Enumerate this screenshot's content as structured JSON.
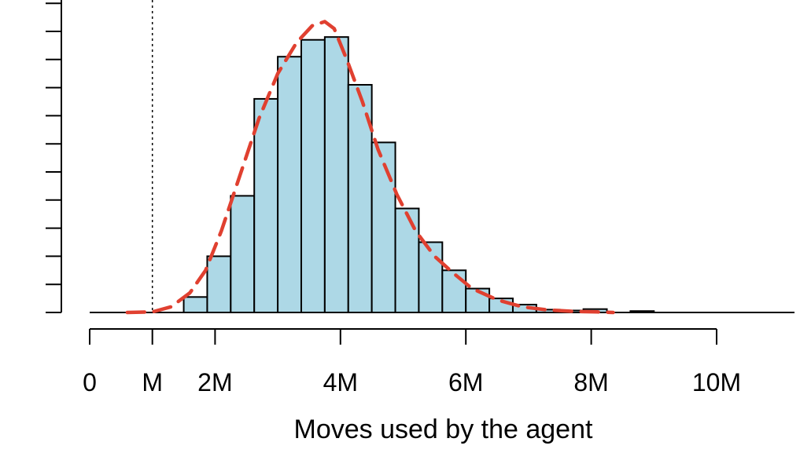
{
  "chart_data": {
    "type": "bar",
    "xlabel": "Moves used by the agent",
    "ylabel": "",
    "x_ticks": [
      {
        "value": 0,
        "label": "0"
      },
      {
        "value": 1,
        "label": "M"
      },
      {
        "value": 2,
        "label": "2M"
      },
      {
        "value": 4,
        "label": "4M"
      },
      {
        "value": 6,
        "label": "6M"
      },
      {
        "value": 8,
        "label": "8M"
      },
      {
        "value": 10,
        "label": "10M"
      }
    ],
    "xlim": [
      0,
      11.2
    ],
    "ylim": [
      0,
      11
    ],
    "bin_width": 0.375,
    "bins": [
      {
        "start": 1.5,
        "value": 0.55
      },
      {
        "start": 1.875,
        "value": 2.0
      },
      {
        "start": 2.25,
        "value": 4.15
      },
      {
        "start": 2.625,
        "value": 7.6
      },
      {
        "start": 3.0,
        "value": 9.1
      },
      {
        "start": 3.375,
        "value": 9.7
      },
      {
        "start": 3.75,
        "value": 9.8
      },
      {
        "start": 4.125,
        "value": 8.1
      },
      {
        "start": 4.5,
        "value": 6.05
      },
      {
        "start": 4.875,
        "value": 3.7
      },
      {
        "start": 5.25,
        "value": 2.5
      },
      {
        "start": 5.625,
        "value": 1.5
      },
      {
        "start": 6.0,
        "value": 0.85
      },
      {
        "start": 6.375,
        "value": 0.5
      },
      {
        "start": 6.75,
        "value": 0.28
      },
      {
        "start": 7.125,
        "value": 0.1
      },
      {
        "start": 7.5,
        "value": 0.07
      },
      {
        "start": 7.875,
        "value": 0.12
      },
      {
        "start": 8.625,
        "value": 0.05
      }
    ],
    "density_curve": {
      "style": "dashed",
      "color": "#e04030",
      "x": [
        0.6,
        1.0,
        1.3,
        1.6,
        1.85,
        2.1,
        2.4,
        2.7,
        3.0,
        3.3,
        3.55,
        3.75,
        3.9,
        4.1,
        4.35,
        4.6,
        4.9,
        5.2,
        5.5,
        5.8,
        6.1,
        6.5,
        6.9,
        7.3,
        7.7,
        8.1,
        8.35
      ],
      "y": [
        0.0,
        0.02,
        0.2,
        0.7,
        1.5,
        2.9,
        4.9,
        6.9,
        8.5,
        9.6,
        10.2,
        10.35,
        10.1,
        9.0,
        7.5,
        5.8,
        4.2,
        2.9,
        2.0,
        1.4,
        0.85,
        0.45,
        0.2,
        0.09,
        0.04,
        0.02,
        0.0
      ]
    },
    "reference_line": {
      "x": 1,
      "style": "dotted"
    },
    "colors": {
      "bar_fill": "#add8e6",
      "bar_stroke": "#000000",
      "curve": "#e04030"
    }
  }
}
